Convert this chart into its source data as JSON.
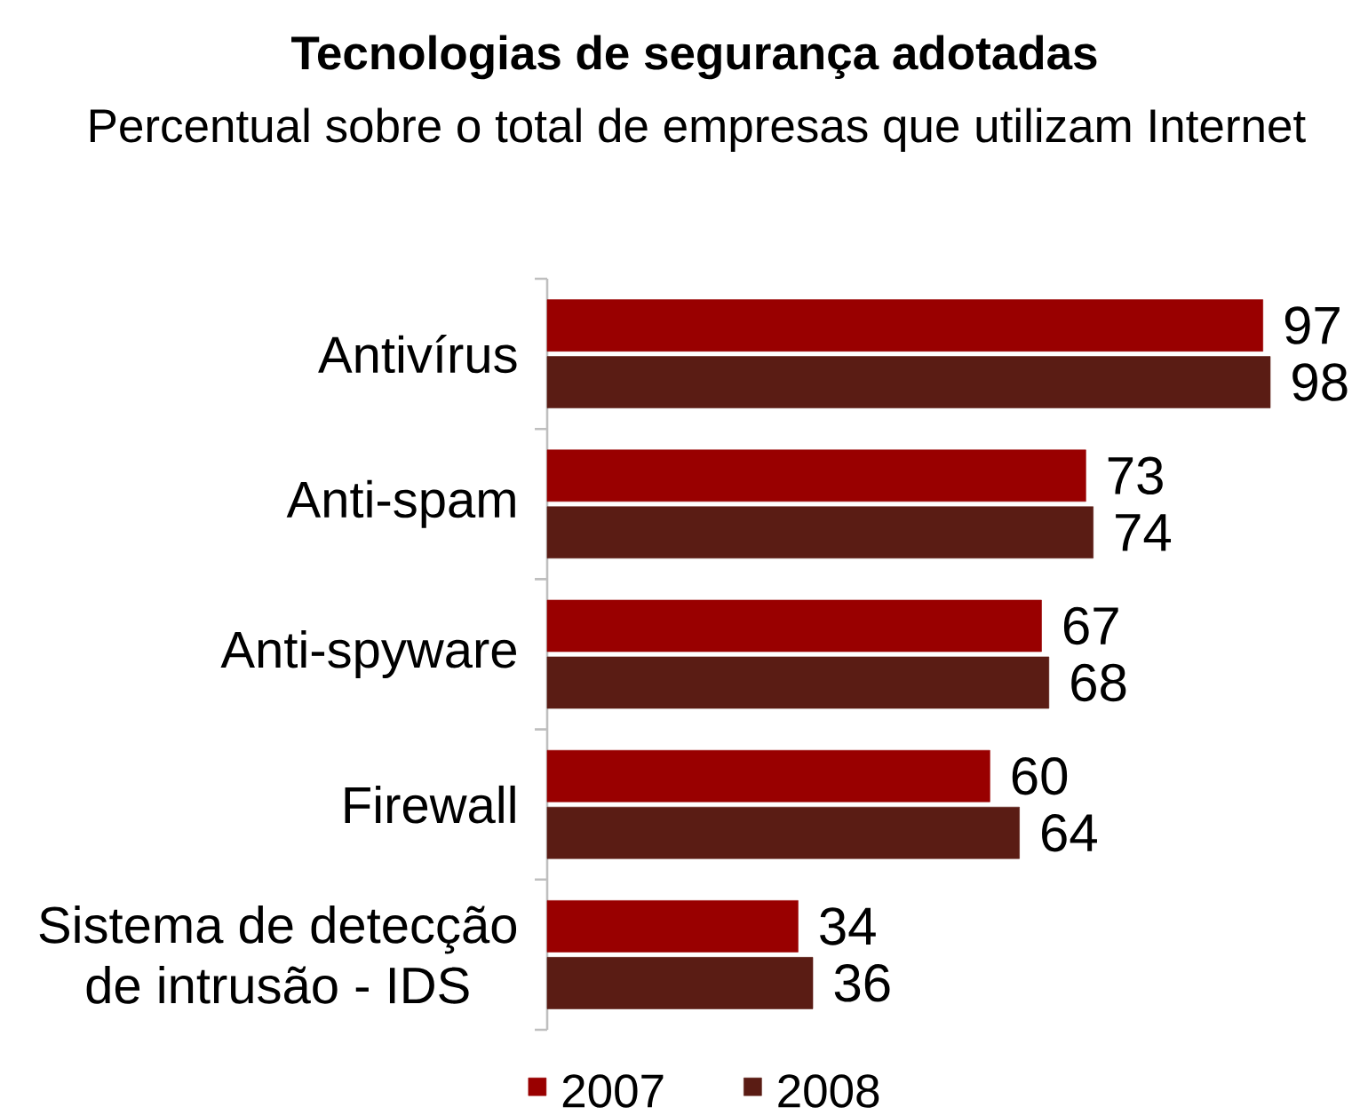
{
  "chart_data": {
    "type": "bar",
    "orientation": "horizontal",
    "title": "Tecnologias de segurança adotadas",
    "subtitle": "Percentual sobre o total de empresas que utilizam Internet",
    "categories": [
      "Antivírus",
      "Anti-spam",
      "Anti-spyware",
      "Firewall",
      "Sistema de detecção de intrusão - IDS"
    ],
    "series": [
      {
        "name": "2007",
        "color": "#990000",
        "values": [
          97,
          73,
          67,
          60,
          34
        ]
      },
      {
        "name": "2008",
        "color": "#5a1c14",
        "values": [
          98,
          74,
          68,
          64,
          36
        ]
      }
    ],
    "data_labels": true,
    "tick_labels": "y",
    "legend": "bottom"
  }
}
